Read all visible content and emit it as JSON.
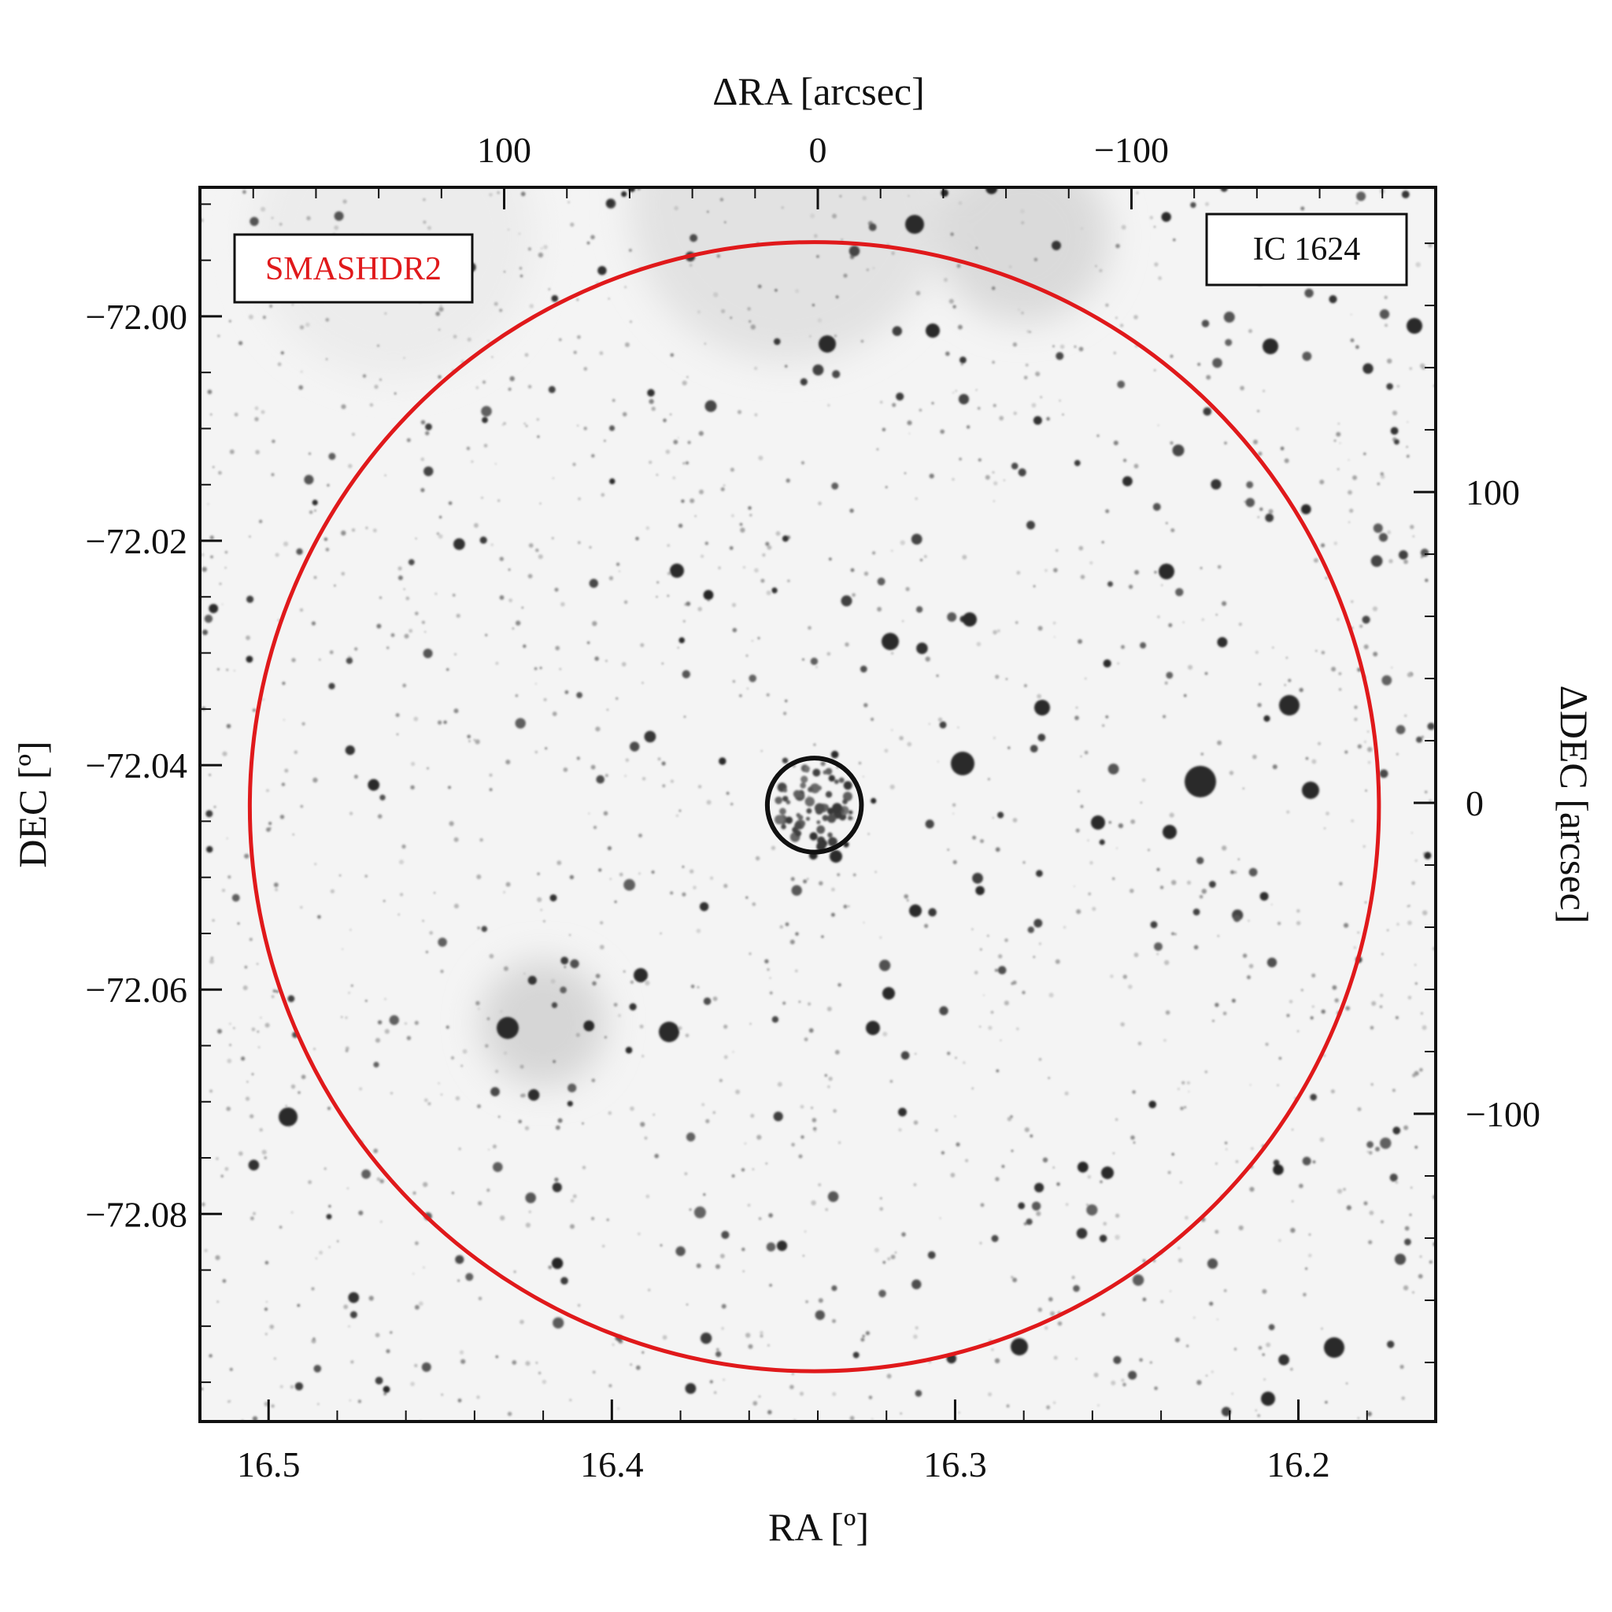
{
  "figure": {
    "top_axis": {
      "title": "ΔRA [arcsec]",
      "ticks": [
        {
          "value": 100,
          "label": "100"
        },
        {
          "value": 0,
          "label": "0"
        },
        {
          "value": -100,
          "label": "−100"
        }
      ],
      "range": [
        197,
        -197
      ]
    },
    "bottom_axis": {
      "title": "RA [º]",
      "ticks": [
        {
          "value": 16.5,
          "label": "16.5"
        },
        {
          "value": 16.4,
          "label": "16.4"
        },
        {
          "value": 16.3,
          "label": "16.3"
        },
        {
          "value": 16.2,
          "label": "16.2"
        }
      ],
      "range": [
        16.52,
        16.16
      ]
    },
    "left_axis": {
      "title": "DEC [º]",
      "ticks": [
        {
          "value": -72.0,
          "label": "−72.00"
        },
        {
          "value": -72.02,
          "label": "−72.02"
        },
        {
          "value": -72.04,
          "label": "−72.04"
        },
        {
          "value": -72.06,
          "label": "−72.06"
        },
        {
          "value": -72.08,
          "label": "−72.08"
        }
      ],
      "range": [
        -71.9885,
        -72.0985
      ]
    },
    "right_axis": {
      "title": "ΔDEC [arcsec]",
      "ticks": [
        {
          "value": 100,
          "label": "100"
        },
        {
          "value": 0,
          "label": "0"
        },
        {
          "value": -100,
          "label": "−100"
        }
      ],
      "range": [
        198,
        -199
      ]
    },
    "survey_label": "SMASHDR2",
    "object_label": "IC 1624",
    "colors": {
      "outer_circle": "#e0191b",
      "inner_circle": "#111111",
      "survey_label": "#e0191b",
      "frame": "#111111"
    },
    "image": {
      "type": "grayscale inverted star field",
      "outer_circle_radius_arcsec": 180,
      "inner_circle_radius_arcsec": 15,
      "center_ra": 16.341,
      "center_dec": -72.0437
    }
  }
}
